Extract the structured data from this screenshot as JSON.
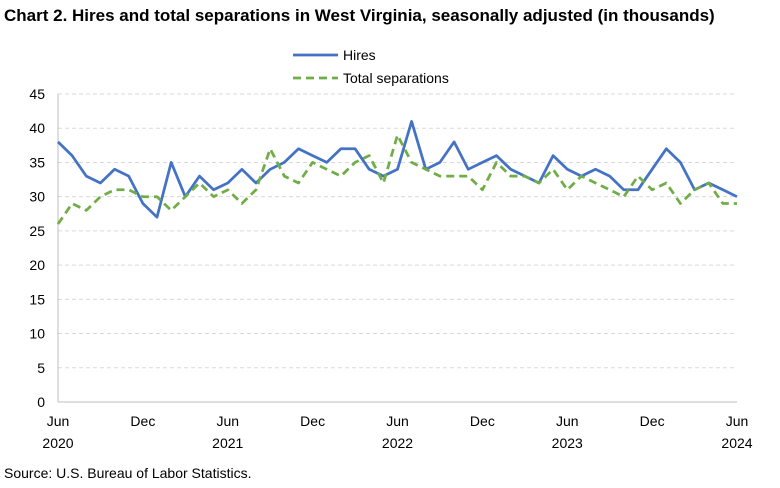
{
  "chart_data": {
    "type": "line",
    "title": "Chart 2. Hires and total separations in West Virginia, seasonally adjusted (in thousands)",
    "source": "Source: U.S. Bureau of Labor Statistics.",
    "ylim": [
      0,
      45
    ],
    "yticks": [
      "0",
      "5",
      "10",
      "15",
      "20",
      "25",
      "30",
      "35",
      "40",
      "45"
    ],
    "xlabels": [
      {
        "month": "Jun",
        "year": "2020",
        "index": 0
      },
      {
        "month": "Dec",
        "year": "",
        "index": 6
      },
      {
        "month": "Jun",
        "year": "2021",
        "index": 12
      },
      {
        "month": "Dec",
        "year": "",
        "index": 18
      },
      {
        "month": "Jun",
        "year": "2022",
        "index": 24
      },
      {
        "month": "Dec",
        "year": "",
        "index": 30
      },
      {
        "month": "Jun",
        "year": "2023",
        "index": 36
      },
      {
        "month": "Dec",
        "year": "",
        "index": 42
      },
      {
        "month": "Jun",
        "year": "2024",
        "index": 48
      }
    ],
    "x_start": "2020-06",
    "x_end": "2024-06",
    "grid": true,
    "legend_position": "top-center",
    "series": [
      {
        "name": "Hires",
        "color": "#4472c4",
        "style": "solid",
        "values": [
          38,
          36,
          33,
          32,
          34,
          33,
          29,
          27,
          35,
          30,
          33,
          31,
          32,
          34,
          32,
          34,
          35,
          37,
          36,
          35,
          37,
          37,
          34,
          33,
          34,
          41,
          34,
          35,
          38,
          34,
          35,
          36,
          34,
          33,
          32,
          36,
          34,
          33,
          34,
          33,
          31,
          31,
          34,
          37,
          35,
          31,
          32,
          31,
          30
        ]
      },
      {
        "name": "Total separations",
        "color": "#70ad47",
        "style": "dashed",
        "values": [
          26,
          29,
          28,
          30,
          31,
          31,
          30,
          30,
          28,
          30,
          32,
          30,
          31,
          29,
          31,
          37,
          33,
          32,
          35,
          34,
          33,
          35,
          36,
          32,
          39,
          35,
          34,
          33,
          33,
          33,
          31,
          35,
          33,
          33,
          32,
          34,
          31,
          33,
          32,
          31,
          30,
          33,
          31,
          32,
          29,
          31,
          32,
          29,
          29
        ]
      }
    ]
  }
}
